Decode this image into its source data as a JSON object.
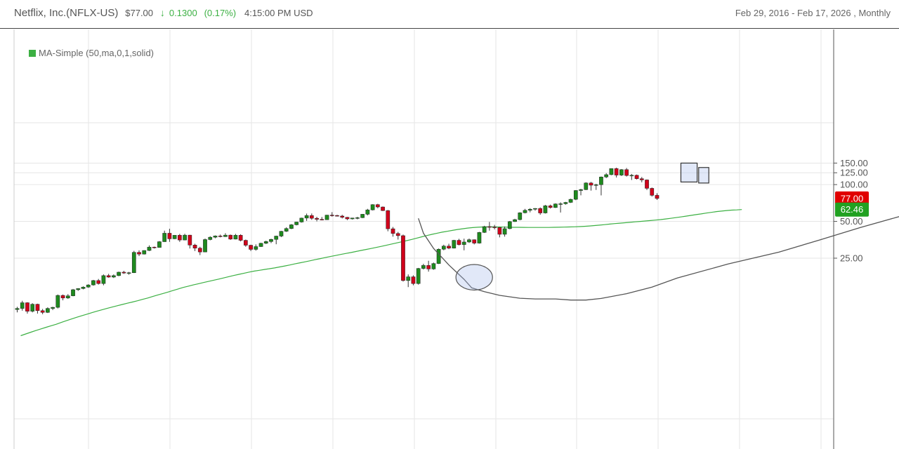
{
  "header": {
    "title": "Netflix, Inc.(NFLX-US)",
    "price": "$77.00",
    "change_icon": "down-arrow-icon",
    "change": "0.1300",
    "change_pct": "(0.17%)",
    "time": "4:15:00 PM USD",
    "range": "Feb 29, 2016 - Feb 17, 2026 , Monthly"
  },
  "legend": {
    "label": "MA-Simple (50,ma,0,1,solid)",
    "color": "#3cb043"
  },
  "badges": {
    "last": {
      "text": "77.00",
      "value": 77,
      "color": "#e00000"
    },
    "ma": {
      "text": "62.46",
      "value": 62.46,
      "color": "#21a121"
    }
  },
  "colors": {
    "up": "#1e8a1e",
    "down": "#d0021b",
    "ma": "#3cb043",
    "grid": "#e6e6e6"
  },
  "chart_data": {
    "type": "candlestick",
    "scale": "log",
    "ylim": [
      5.5,
      158
    ],
    "yticks": [
      {
        "value": 150,
        "label": "150.00"
      },
      {
        "value": 125,
        "label": "125.00"
      },
      {
        "value": 100,
        "label": "100.00"
      },
      {
        "value": 50,
        "label": "50.00"
      },
      {
        "value": 25,
        "label": "25.00"
      }
    ],
    "candles": [
      [
        9.5,
        10,
        9,
        9.7
      ],
      [
        9.7,
        11.2,
        9.3,
        10.8
      ],
      [
        10.8,
        10.9,
        8.8,
        9.2
      ],
      [
        9.2,
        10.7,
        9.0,
        10.5
      ],
      [
        10.5,
        10.6,
        8.8,
        9.3
      ],
      [
        9.3,
        9.6,
        8.7,
        9.0
      ],
      [
        9.0,
        9.9,
        8.9,
        9.7
      ],
      [
        9.7,
        10.0,
        9.4,
        9.9
      ],
      [
        9.9,
        12.6,
        9.7,
        12.4
      ],
      [
        12.4,
        12.6,
        11.3,
        11.8
      ],
      [
        11.8,
        12.7,
        11.6,
        12.3
      ],
      [
        12.3,
        14.0,
        12.2,
        13.8
      ],
      [
        13.8,
        14.2,
        13.5,
        14.1
      ],
      [
        14.1,
        14.7,
        13.9,
        14.5
      ],
      [
        14.5,
        15.3,
        14.3,
        15.1
      ],
      [
        15.1,
        16.6,
        14.9,
        16.4
      ],
      [
        16.4,
        16.9,
        15.2,
        15.5
      ],
      [
        15.5,
        18.4,
        15.0,
        18.0
      ],
      [
        18.0,
        18.6,
        17.3,
        17.5
      ],
      [
        17.5,
        18.4,
        17.2,
        18.0
      ],
      [
        18.0,
        19.4,
        17.8,
        19.2
      ],
      [
        19.2,
        19.7,
        18.6,
        18.9
      ],
      [
        18.9,
        19.3,
        18.3,
        19.0
      ],
      [
        19.0,
        28.7,
        18.9,
        27.9
      ],
      [
        27.9,
        29.0,
        26.0,
        27.0
      ],
      [
        27.0,
        29.0,
        26.8,
        28.9
      ],
      [
        28.9,
        31.8,
        28.6,
        30.8
      ],
      [
        30.8,
        31.1,
        30.0,
        30.6
      ],
      [
        30.6,
        34.5,
        30.5,
        34.1
      ],
      [
        34.1,
        42.0,
        34.0,
        40.0
      ],
      [
        40.0,
        43.5,
        34.0,
        36.0
      ],
      [
        36.0,
        38.5,
        35.8,
        38.5
      ],
      [
        38.5,
        39.5,
        34.0,
        35.2
      ],
      [
        35.2,
        39.6,
        35.0,
        38.6
      ],
      [
        38.6,
        38.8,
        30.0,
        32.0
      ],
      [
        32.0,
        32.8,
        28.6,
        30.2
      ],
      [
        30.2,
        31.0,
        26.5,
        28.1
      ],
      [
        28.1,
        36.2,
        28.0,
        35.5
      ],
      [
        35.5,
        37.8,
        35.0,
        37.1
      ],
      [
        37.1,
        38.4,
        36.4,
        38.0
      ],
      [
        38.0,
        39.0,
        37.0,
        37.5
      ],
      [
        37.5,
        40.0,
        37.3,
        38.6
      ],
      [
        38.6,
        39.0,
        35.3,
        35.8
      ],
      [
        35.8,
        39.5,
        35.6,
        38.5
      ],
      [
        38.5,
        39.2,
        34.3,
        35.0
      ],
      [
        35.0,
        35.5,
        31.0,
        31.9
      ],
      [
        31.9,
        32.2,
        28.6,
        29.5
      ],
      [
        29.5,
        32.4,
        28.8,
        31.1
      ],
      [
        31.1,
        33.4,
        30.9,
        33.1
      ],
      [
        33.1,
        34.8,
        32.6,
        34.2
      ],
      [
        34.2,
        36.1,
        33.2,
        35.6
      ],
      [
        35.6,
        38.2,
        32.5,
        37.9
      ],
      [
        37.9,
        41.8,
        37.2,
        41.5
      ],
      [
        41.5,
        44.7,
        41.0,
        43.7
      ],
      [
        43.7,
        47.5,
        43.2,
        46.9
      ],
      [
        46.9,
        49.6,
        46.4,
        49.4
      ],
      [
        49.4,
        53.6,
        48.9,
        53.2
      ],
      [
        53.2,
        57.9,
        50.5,
        55.8
      ],
      [
        55.8,
        58.0,
        51.5,
        53.0
      ],
      [
        53.0,
        54.5,
        50.0,
        52.0
      ],
      [
        52.0,
        54.3,
        51.0,
        51.6
      ],
      [
        51.6,
        56.5,
        51.4,
        56.3
      ],
      [
        56.3,
        59.5,
        54.7,
        55.9
      ],
      [
        55.9,
        56.6,
        54.8,
        55.3
      ],
      [
        55.3,
        56.6,
        52.8,
        54.0
      ],
      [
        54.0,
        54.4,
        51.2,
        52.4
      ],
      [
        52.4,
        53.5,
        51.8,
        53.3
      ],
      [
        53.3,
        54.5,
        52.0,
        53.6
      ],
      [
        53.6,
        57.5,
        53.2,
        57.2
      ],
      [
        57.2,
        63.3,
        56.0,
        62.1
      ],
      [
        62.1,
        69.0,
        61.5,
        68.6
      ],
      [
        68.6,
        69.6,
        64.0,
        65.6
      ],
      [
        65.6,
        66.2,
        60.8,
        61.3
      ],
      [
        61.3,
        62.0,
        41.5,
        43.5
      ],
      [
        43.5,
        45.0,
        37.5,
        39.8
      ],
      [
        39.8,
        41.0,
        35.5,
        38.2
      ],
      [
        38.2,
        39.0,
        16.1,
        16.4
      ],
      [
        16.4,
        18.4,
        14.5,
        17.6
      ],
      [
        17.6,
        18.1,
        15.0,
        15.5
      ],
      [
        15.5,
        20.8,
        15.2,
        20.6
      ],
      [
        20.6,
        22.5,
        20.2,
        21.8
      ],
      [
        21.8,
        23.8,
        19.4,
        20.4
      ],
      [
        20.4,
        23.0,
        20.1,
        22.6
      ],
      [
        22.6,
        30.0,
        22.4,
        29.6
      ],
      [
        29.6,
        32.2,
        29.0,
        31.4
      ],
      [
        31.4,
        32.8,
        29.6,
        30.2
      ],
      [
        30.2,
        35.3,
        30.0,
        35.0
      ],
      [
        35.0,
        36.0,
        31.8,
        32.3
      ],
      [
        32.3,
        36.1,
        29.0,
        33.9
      ],
      [
        33.9,
        36.2,
        33.3,
        35.4
      ],
      [
        35.4,
        35.6,
        32.4,
        33.2
      ],
      [
        33.2,
        41.0,
        32.9,
        40.6
      ],
      [
        40.6,
        46.0,
        40.2,
        45.3
      ],
      [
        45.3,
        49.5,
        42.0,
        45.0
      ],
      [
        45.0,
        46.8,
        43.0,
        44.6
      ],
      [
        44.6,
        45.0,
        37.0,
        39.2
      ],
      [
        39.2,
        45.4,
        37.5,
        43.6
      ],
      [
        43.6,
        50.4,
        43.1,
        49.8
      ],
      [
        49.8,
        52.5,
        49.5,
        51.7
      ],
      [
        51.7,
        59.4,
        51.0,
        58.8
      ],
      [
        58.8,
        63.3,
        58.2,
        61.6
      ],
      [
        61.6,
        64.1,
        59.3,
        62.9
      ],
      [
        62.9,
        64.2,
        61.2,
        63.8
      ],
      [
        63.8,
        65.0,
        56.7,
        58.6
      ],
      [
        58.6,
        68.2,
        58.0,
        67.1
      ],
      [
        67.1,
        68.6,
        63.7,
        64.9
      ],
      [
        64.9,
        70.2,
        64.4,
        69.5
      ],
      [
        69.5,
        71.6,
        59.1,
        69.7
      ],
      [
        69.7,
        72.2,
        68.5,
        71.5
      ],
      [
        71.5,
        76.6,
        70.8,
        75.8
      ],
      [
        75.8,
        90.0,
        74.6,
        89.5
      ],
      [
        89.5,
        92.4,
        81.7,
        90.9
      ],
      [
        90.9,
        104.5,
        90.2,
        103.1
      ],
      [
        103.1,
        105.0,
        89.3,
        98.9
      ],
      [
        98.9,
        101.6,
        90.4,
        99.8
      ],
      [
        99.8,
        116.5,
        81.6,
        115.4
      ],
      [
        115.4,
        124.0,
        113.0,
        120.6
      ],
      [
        120.6,
        135.4,
        119.4,
        135.2
      ],
      [
        135.2,
        137.6,
        114.3,
        119.6
      ],
      [
        119.6,
        133.9,
        117.6,
        132.6
      ],
      [
        132.6,
        136.7,
        116.4,
        118.7
      ],
      [
        118.7,
        122.2,
        109.1,
        119.2
      ],
      [
        119.2,
        120.8,
        110.1,
        111.8
      ],
      [
        111.8,
        115.4,
        104.4,
        109.2
      ],
      [
        109.2,
        110.2,
        90.3,
        93.2
      ],
      [
        93.2,
        94.6,
        79.8,
        81.7
      ],
      [
        81.7,
        85.0,
        74.9,
        77.0
      ]
    ],
    "ma50": [
      5.8,
      6.0,
      6.2,
      6.4,
      6.6,
      6.8,
      7.0,
      7.2,
      7.45,
      7.7,
      7.95,
      8.2,
      8.45,
      8.7,
      8.95,
      9.2,
      9.45,
      9.7,
      9.95,
      10.2,
      10.45,
      10.7,
      10.95,
      11.2,
      11.5,
      11.8,
      12.15,
      12.5,
      12.85,
      13.2,
      13.6,
      14.0,
      14.4,
      14.75,
      15.1,
      15.45,
      15.8,
      16.15,
      16.5,
      16.85,
      17.25,
      17.65,
      18.05,
      18.45,
      18.85,
      19.25,
      19.6,
      19.9,
      20.2,
      20.5,
      20.8,
      21.2,
      21.6,
      22.0,
      22.45,
      22.9,
      23.35,
      23.8,
      24.3,
      24.8,
      25.3,
      25.8,
      26.3,
      26.8,
      27.3,
      27.8,
      28.35,
      28.9,
      29.45,
      30.0,
      30.6,
      31.2,
      31.9,
      32.6,
      33.3,
      34.0,
      34.8,
      35.6,
      36.5,
      37.4,
      38.3,
      39.2,
      40.0,
      40.8,
      41.5,
      42.2,
      42.9,
      43.5,
      44.05,
      44.5,
      44.8,
      45.0,
      45.05,
      45.05,
      45.0,
      44.95,
      44.85,
      44.75,
      44.7,
      44.65,
      44.6,
      44.6,
      44.6,
      44.6,
      44.6,
      44.7,
      44.8,
      44.9,
      45.0,
      45.15,
      45.3,
      45.55,
      45.85,
      46.2,
      46.6,
      47.05,
      47.5,
      47.95,
      48.35,
      48.75,
      49.15,
      49.55,
      49.95,
      50.35,
      50.8,
      51.25,
      51.75,
      52.35,
      53.0,
      53.7,
      54.4,
      55.2,
      56.0,
      56.8,
      57.6,
      58.5,
      59.3,
      60.1,
      60.7,
      61.3,
      61.8,
      62.1,
      62.46
    ]
  },
  "annotations": {
    "cup": [
      [
        79,
        53
      ],
      [
        80,
        40
      ],
      [
        82,
        30
      ],
      [
        85,
        22
      ],
      [
        88,
        16.8
      ],
      [
        89.5,
        14.3
      ],
      [
        92,
        13.3
      ],
      [
        95,
        12.4
      ],
      [
        99,
        11.75
      ],
      [
        102,
        11.6
      ],
      [
        106,
        11.6
      ],
      [
        109,
        11.35
      ],
      [
        112,
        11.35
      ],
      [
        115,
        11.7
      ],
      [
        120,
        12.8
      ],
      [
        125,
        14.5
      ],
      [
        130,
        17.2
      ],
      [
        140,
        22.4
      ],
      [
        150,
        28
      ],
      [
        158,
        35.2
      ],
      [
        166,
        44.5
      ],
      [
        174,
        55.2
      ],
      [
        180,
        63.8
      ]
    ],
    "ellipse": {
      "x": 90,
      "y": 17.3,
      "rx": 3.6,
      "ry_hi": 22.2,
      "ry_lo": 13.7
    },
    "boxes": [
      {
        "x0": 130.7,
        "x1": 133.9,
        "y0": 150,
        "y1": 105
      },
      {
        "x0": 134.2,
        "x1": 136.2,
        "y0": 138,
        "y1": 103
      }
    ]
  }
}
